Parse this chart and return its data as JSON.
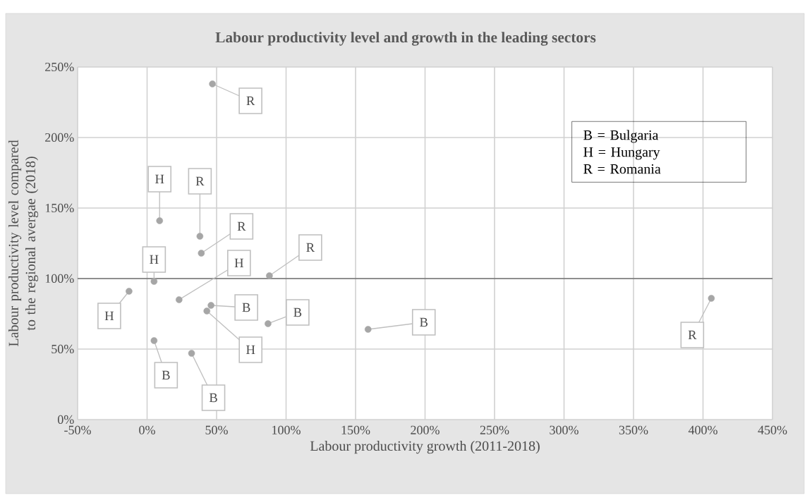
{
  "chart_data": {
    "type": "scatter",
    "title": "Labour productivity level and growth in the leading sectors",
    "xlabel": "Labour productivity growth (2011-2018)",
    "ylabel": "Labour productivity level compared to the regional avergae (2018)",
    "x": [
      47,
      9,
      38,
      39,
      5,
      -13,
      23,
      88,
      46,
      43,
      87,
      5,
      32,
      159,
      406
    ],
    "series": [
      {
        "color": "#a6a6a6",
        "values": [
          238,
          141,
          130,
          118,
          98,
          91,
          85,
          102,
          81,
          77,
          68,
          56,
          47,
          64,
          86
        ],
        "value_labels": [
          "R",
          "H",
          "R",
          "R",
          "H",
          "H",
          "H",
          "R",
          "B",
          "H",
          "B",
          "B",
          "B",
          "B",
          "R"
        ]
      }
    ],
    "xlim": [
      -50,
      450
    ],
    "xticks": [
      {
        "value": -50,
        "label": "-50%"
      },
      {
        "value": 0,
        "label": "0%"
      },
      {
        "value": 50,
        "label": "50%"
      },
      {
        "value": 100,
        "label": "100%"
      },
      {
        "value": 150,
        "label": "150%"
      },
      {
        "value": 200,
        "label": "200%"
      },
      {
        "value": 250,
        "label": "250%"
      },
      {
        "value": 300,
        "label": "300%"
      },
      {
        "value": 350,
        "label": "350%"
      },
      {
        "value": 400,
        "label": "400%"
      },
      {
        "value": 450,
        "label": "450%"
      }
    ],
    "ylim": [
      0,
      250
    ],
    "yticks": [
      {
        "value": 0,
        "label": "0%"
      },
      {
        "value": 50,
        "label": "50%"
      },
      {
        "value": 100,
        "label": "100%"
      },
      {
        "value": 150,
        "label": "150%"
      },
      {
        "value": 200,
        "label": "200%"
      },
      {
        "value": 250,
        "label": "250%"
      }
    ],
    "ref_lines": [
      {
        "axis": "y",
        "value": 100,
        "color": "#404040"
      }
    ],
    "annotations": [
      "B = Bulgaria",
      "H = Hungary",
      "R = Romania"
    ],
    "grid": true,
    "marker": "circle"
  }
}
